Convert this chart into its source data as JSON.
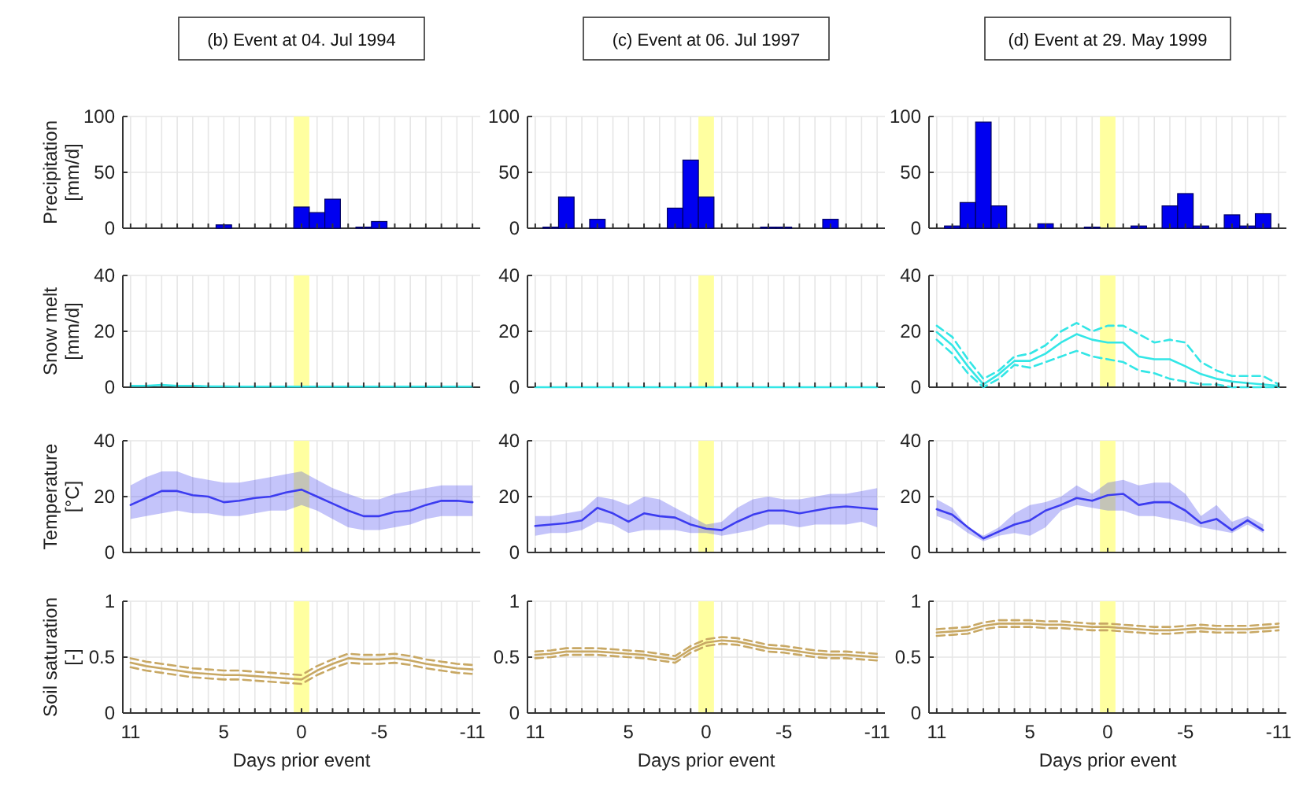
{
  "chart_data": [
    {
      "type": "bar",
      "title": "(b) Event at 04. Jul 1994",
      "ylabel": "Precipitation [mm/d]",
      "x": [
        5,
        0,
        -1,
        -2,
        -4,
        -5
      ],
      "values": [
        3,
        19,
        14,
        26,
        1,
        6
      ],
      "color": "#0000f0",
      "xlim": [
        11.5,
        -11.5
      ],
      "ylim": [
        0,
        100
      ],
      "yticks": [
        0,
        50,
        100
      ],
      "xticks": [
        11,
        {
          "value": 10,
          "label": null
        },
        {
          "value": 9,
          "label": null
        },
        {
          "value": 8,
          "label": null
        },
        {
          "value": 7,
          "label": null
        },
        {
          "value": 6,
          "label": null
        },
        5,
        {
          "value": 4,
          "label": null
        },
        {
          "value": 3,
          "label": null
        },
        {
          "value": 2,
          "label": null
        },
        {
          "value": 1,
          "label": null
        },
        0,
        {
          "value": -1,
          "label": null
        },
        {
          "value": -2,
          "label": null
        },
        {
          "value": -3,
          "label": null
        },
        {
          "value": -4,
          "label": null
        },
        -5,
        {
          "value": -6,
          "label": null
        },
        {
          "value": -7,
          "label": null
        },
        {
          "value": -8,
          "label": null
        },
        {
          "value": -9,
          "label": null
        },
        {
          "value": -10,
          "label": null
        },
        -11
      ],
      "grid": true,
      "tick_labels": "y",
      "bands": [
        {
          "axis": "x",
          "from": 0.5,
          "to": -0.5,
          "color": "#ffffa0"
        }
      ]
    },
    {
      "type": "bar",
      "title": "(c) Event at 06. Jul 1997",
      "x": [
        10,
        9,
        7,
        2,
        1,
        0,
        -4,
        -5,
        -8
      ],
      "values": [
        1,
        28,
        8,
        18,
        61,
        28,
        1,
        1,
        8
      ],
      "color": "#0000f0",
      "xlim": [
        11.5,
        -11.5
      ],
      "ylim": [
        0,
        100
      ],
      "yticks": [
        0,
        50,
        100
      ],
      "xticks": [
        11,
        {
          "value": 10,
          "label": null
        },
        {
          "value": 9,
          "label": null
        },
        {
          "value": 8,
          "label": null
        },
        {
          "value": 7,
          "label": null
        },
        {
          "value": 6,
          "label": null
        },
        5,
        {
          "value": 4,
          "label": null
        },
        {
          "value": 3,
          "label": null
        },
        {
          "value": 2,
          "label": null
        },
        {
          "value": 1,
          "label": null
        },
        0,
        {
          "value": -1,
          "label": null
        },
        {
          "value": -2,
          "label": null
        },
        {
          "value": -3,
          "label": null
        },
        {
          "value": -4,
          "label": null
        },
        -5,
        {
          "value": -6,
          "label": null
        },
        {
          "value": -7,
          "label": null
        },
        {
          "value": -8,
          "label": null
        },
        {
          "value": -9,
          "label": null
        },
        {
          "value": -10,
          "label": null
        },
        -11
      ],
      "grid": true,
      "tick_labels": "y",
      "bands": [
        {
          "axis": "x",
          "from": 0.5,
          "to": -0.5,
          "color": "#ffffa0"
        }
      ]
    },
    {
      "type": "bar",
      "title": "(d) Event at 29. May 1999",
      "x": [
        10,
        9,
        8,
        7,
        4,
        1,
        -2,
        -4,
        -5,
        -6,
        -8,
        -9,
        -10
      ],
      "values": [
        2,
        23,
        95,
        20,
        4,
        1,
        2,
        20,
        31,
        2,
        12,
        2,
        13
      ],
      "color": "#0000f0",
      "xlim": [
        11.5,
        -11.5
      ],
      "ylim": [
        0,
        100
      ],
      "yticks": [
        0,
        50,
        100
      ],
      "xticks": [
        11,
        {
          "value": 10,
          "label": null
        },
        {
          "value": 9,
          "label": null
        },
        {
          "value": 8,
          "label": null
        },
        {
          "value": 7,
          "label": null
        },
        {
          "value": 6,
          "label": null
        },
        5,
        {
          "value": 4,
          "label": null
        },
        {
          "value": 3,
          "label": null
        },
        {
          "value": 2,
          "label": null
        },
        {
          "value": 1,
          "label": null
        },
        0,
        {
          "value": -1,
          "label": null
        },
        {
          "value": -2,
          "label": null
        },
        {
          "value": -3,
          "label": null
        },
        {
          "value": -4,
          "label": null
        },
        -5,
        {
          "value": -6,
          "label": null
        },
        {
          "value": -7,
          "label": null
        },
        {
          "value": -8,
          "label": null
        },
        {
          "value": -9,
          "label": null
        },
        {
          "value": -10,
          "label": null
        },
        -11
      ],
      "grid": true,
      "tick_labels": "y",
      "bands": [
        {
          "axis": "x",
          "from": 0.5,
          "to": -0.5,
          "color": "#ffffa0"
        }
      ]
    },
    {
      "type": "line",
      "ylabel": "Snow melt [mm/d]",
      "x": [
        11,
        10,
        9,
        8,
        7,
        6,
        5,
        4,
        3,
        2,
        1,
        0,
        -1,
        -2,
        -3,
        -4,
        -5,
        -6,
        -7,
        -8,
        -9,
        -10,
        -11
      ],
      "series": [
        {
          "color": "#33e6e6",
          "values": [
            0.5,
            0.5,
            0.8,
            0.5,
            0.5,
            0.3,
            0.3,
            0.2,
            0.2,
            0.2,
            0.2,
            0.2,
            0.2,
            0.2,
            0.2,
            0.2,
            0.2,
            0.2,
            0.2,
            0.2,
            0.2,
            0.2,
            0.2
          ]
        }
      ],
      "xlim": [
        11.5,
        -11.5
      ],
      "ylim": [
        0,
        40
      ],
      "yticks": [
        0,
        20,
        40
      ],
      "xticks": [
        11,
        {
          "value": 10,
          "label": null
        },
        {
          "value": 9,
          "label": null
        },
        {
          "value": 8,
          "label": null
        },
        {
          "value": 7,
          "label": null
        },
        {
          "value": 6,
          "label": null
        },
        5,
        {
          "value": 4,
          "label": null
        },
        {
          "value": 3,
          "label": null
        },
        {
          "value": 2,
          "label": null
        },
        {
          "value": 1,
          "label": null
        },
        0,
        {
          "value": -1,
          "label": null
        },
        {
          "value": -2,
          "label": null
        },
        {
          "value": -3,
          "label": null
        },
        {
          "value": -4,
          "label": null
        },
        -5,
        {
          "value": -6,
          "label": null
        },
        {
          "value": -7,
          "label": null
        },
        {
          "value": -8,
          "label": null
        },
        {
          "value": -9,
          "label": null
        },
        {
          "value": -10,
          "label": null
        },
        -11
      ],
      "grid": true,
      "tick_labels": "y",
      "bands": [
        {
          "axis": "x",
          "from": 0.5,
          "to": -0.5,
          "color": "#ffffa0"
        }
      ]
    },
    {
      "type": "line",
      "x": [
        11,
        10,
        9,
        8,
        7,
        6,
        5,
        4,
        3,
        2,
        1,
        0,
        -1,
        -2,
        -3,
        -4,
        -5,
        -6,
        -7,
        -8,
        -9,
        -10,
        -11
      ],
      "series": [
        {
          "color": "#33e6e6",
          "values": [
            0,
            0,
            0,
            0,
            0,
            0,
            0,
            0,
            0,
            0,
            0,
            0,
            0,
            0,
            0,
            0,
            0,
            0,
            0,
            0,
            0,
            0,
            0
          ]
        }
      ],
      "xlim": [
        11.5,
        -11.5
      ],
      "ylim": [
        0,
        40
      ],
      "yticks": [
        0,
        20,
        40
      ],
      "xticks": [
        11,
        {
          "value": 10,
          "label": null
        },
        {
          "value": 9,
          "label": null
        },
        {
          "value": 8,
          "label": null
        },
        {
          "value": 7,
          "label": null
        },
        {
          "value": 6,
          "label": null
        },
        5,
        {
          "value": 4,
          "label": null
        },
        {
          "value": 3,
          "label": null
        },
        {
          "value": 2,
          "label": null
        },
        {
          "value": 1,
          "label": null
        },
        0,
        {
          "value": -1,
          "label": null
        },
        {
          "value": -2,
          "label": null
        },
        {
          "value": -3,
          "label": null
        },
        {
          "value": -4,
          "label": null
        },
        -5,
        {
          "value": -6,
          "label": null
        },
        {
          "value": -7,
          "label": null
        },
        {
          "value": -8,
          "label": null
        },
        {
          "value": -9,
          "label": null
        },
        {
          "value": -10,
          "label": null
        },
        -11
      ],
      "grid": true,
      "tick_labels": "y",
      "bands": [
        {
          "axis": "x",
          "from": 0.5,
          "to": -0.5,
          "color": "#ffffa0"
        }
      ]
    },
    {
      "type": "line",
      "x": [
        11,
        10,
        9,
        8,
        7,
        6,
        5,
        4,
        3,
        2,
        1,
        0,
        -1,
        -2,
        -3,
        -4,
        -5,
        -6,
        -7,
        -8,
        -9,
        -10,
        -11
      ],
      "series": [
        {
          "color": "#33e6e6",
          "line_style": "solid",
          "values": [
            19.7,
            15,
            7.5,
            1,
            4.7,
            9.4,
            9.4,
            12,
            16,
            19,
            17,
            16,
            16,
            11,
            10,
            10,
            7.5,
            4.7,
            3,
            2,
            1.5,
            1,
            0.5
          ]
        },
        {
          "color": "#33e6e6",
          "line_style": "dashed",
          "values": [
            22,
            18,
            10,
            3,
            6,
            11,
            12,
            15,
            20,
            23,
            20,
            22,
            22,
            19,
            16,
            17,
            16,
            9,
            6,
            4,
            4,
            4,
            1
          ]
        },
        {
          "color": "#33e6e6",
          "line_style": "dashed",
          "values": [
            17,
            12,
            5,
            0,
            3,
            8,
            7,
            9,
            11,
            13,
            11,
            10,
            9,
            6,
            5,
            3,
            2,
            1,
            1,
            0,
            0,
            0,
            0
          ]
        }
      ],
      "xlim": [
        11.5,
        -11.5
      ],
      "ylim": [
        0,
        40
      ],
      "yticks": [
        0,
        20,
        40
      ],
      "xticks": [
        11,
        {
          "value": 10,
          "label": null
        },
        {
          "value": 9,
          "label": null
        },
        {
          "value": 8,
          "label": null
        },
        {
          "value": 7,
          "label": null
        },
        {
          "value": 6,
          "label": null
        },
        5,
        {
          "value": 4,
          "label": null
        },
        {
          "value": 3,
          "label": null
        },
        {
          "value": 2,
          "label": null
        },
        {
          "value": 1,
          "label": null
        },
        0,
        {
          "value": -1,
          "label": null
        },
        {
          "value": -2,
          "label": null
        },
        {
          "value": -3,
          "label": null
        },
        {
          "value": -4,
          "label": null
        },
        -5,
        {
          "value": -6,
          "label": null
        },
        {
          "value": -7,
          "label": null
        },
        {
          "value": -8,
          "label": null
        },
        {
          "value": -9,
          "label": null
        },
        {
          "value": -10,
          "label": null
        },
        -11
      ],
      "grid": true,
      "tick_labels": "y",
      "bands": [
        {
          "axis": "x",
          "from": 0.5,
          "to": -0.5,
          "color": "#ffffa0"
        }
      ]
    },
    {
      "type": "line",
      "ylabel": "Temperature [°C]",
      "x": [
        11,
        10,
        9,
        8,
        7,
        6,
        5,
        4,
        3,
        2,
        1,
        0,
        -1,
        -2,
        -3,
        -4,
        -5,
        -6,
        -7,
        -8,
        -9,
        -10,
        -11
      ],
      "series": [
        {
          "color": "#3c3cf0",
          "values": [
            17,
            19.5,
            22,
            22,
            20.5,
            20,
            18,
            18.5,
            19.5,
            20,
            21.5,
            22.5,
            20,
            17.5,
            15,
            13,
            13,
            14.5,
            15,
            17,
            18.5,
            18.5,
            18
          ],
          "upper": [
            24,
            27,
            29,
            29,
            27,
            26,
            25,
            25,
            26,
            27,
            28,
            29,
            26,
            23,
            21,
            19,
            19,
            21,
            22,
            23,
            24,
            24,
            24
          ],
          "lower": [
            12,
            13,
            14,
            15,
            14,
            14,
            13,
            13,
            14,
            15,
            15,
            17,
            15,
            12,
            9,
            8,
            8,
            9,
            10,
            12,
            13,
            13,
            13
          ]
        }
      ],
      "xlim": [
        11.5,
        -11.5
      ],
      "ylim": [
        0,
        40
      ],
      "yticks": [
        0,
        20,
        40
      ],
      "xticks": [
        11,
        {
          "value": 10,
          "label": null
        },
        {
          "value": 9,
          "label": null
        },
        {
          "value": 8,
          "label": null
        },
        {
          "value": 7,
          "label": null
        },
        {
          "value": 6,
          "label": null
        },
        5,
        {
          "value": 4,
          "label": null
        },
        {
          "value": 3,
          "label": null
        },
        {
          "value": 2,
          "label": null
        },
        {
          "value": 1,
          "label": null
        },
        0,
        {
          "value": -1,
          "label": null
        },
        {
          "value": -2,
          "label": null
        },
        {
          "value": -3,
          "label": null
        },
        {
          "value": -4,
          "label": null
        },
        -5,
        {
          "value": -6,
          "label": null
        },
        {
          "value": -7,
          "label": null
        },
        {
          "value": -8,
          "label": null
        },
        {
          "value": -9,
          "label": null
        },
        {
          "value": -10,
          "label": null
        },
        -11
      ],
      "grid": true,
      "tick_labels": "y",
      "bands": [
        {
          "axis": "x",
          "from": 0.5,
          "to": -0.5,
          "color": "#ffffa0"
        }
      ]
    },
    {
      "type": "line",
      "x": [
        11,
        10,
        9,
        8,
        7,
        6,
        5,
        4,
        3,
        2,
        1,
        0,
        -1,
        -2,
        -3,
        -4,
        -5,
        -6,
        -7,
        -8,
        -9,
        -10,
        -11
      ],
      "series": [
        {
          "color": "#3c3cf0",
          "values": [
            9.5,
            10,
            10.5,
            11.5,
            16,
            14,
            11,
            14,
            13,
            12.5,
            10,
            8.5,
            8,
            11,
            13.5,
            15,
            15,
            14,
            15,
            16,
            16.5,
            16,
            15.5
          ],
          "upper": [
            13,
            13,
            14,
            15,
            20,
            19,
            17,
            20,
            19,
            16,
            13,
            10,
            11,
            16,
            19,
            20,
            19,
            19,
            20,
            21,
            21,
            22,
            23
          ],
          "lower": [
            6,
            7,
            7,
            8,
            11,
            10,
            7,
            8,
            8,
            8,
            7,
            7,
            6,
            7,
            8,
            10,
            10,
            9,
            10,
            10,
            10,
            11,
            9
          ]
        }
      ],
      "xlim": [
        11.5,
        -11.5
      ],
      "ylim": [
        0,
        40
      ],
      "yticks": [
        0,
        20,
        40
      ],
      "xticks": [
        11,
        {
          "value": 10,
          "label": null
        },
        {
          "value": 9,
          "label": null
        },
        {
          "value": 8,
          "label": null
        },
        {
          "value": 7,
          "label": null
        },
        {
          "value": 6,
          "label": null
        },
        5,
        {
          "value": 4,
          "label": null
        },
        {
          "value": 3,
          "label": null
        },
        {
          "value": 2,
          "label": null
        },
        {
          "value": 1,
          "label": null
        },
        0,
        {
          "value": -1,
          "label": null
        },
        {
          "value": -2,
          "label": null
        },
        {
          "value": -3,
          "label": null
        },
        {
          "value": -4,
          "label": null
        },
        -5,
        {
          "value": -6,
          "label": null
        },
        {
          "value": -7,
          "label": null
        },
        {
          "value": -8,
          "label": null
        },
        {
          "value": -9,
          "label": null
        },
        {
          "value": -10,
          "label": null
        },
        -11
      ],
      "grid": true,
      "tick_labels": "y",
      "bands": [
        {
          "axis": "x",
          "from": 0.5,
          "to": -0.5,
          "color": "#ffffa0"
        }
      ]
    },
    {
      "type": "line",
      "x": [
        11,
        10,
        9,
        8,
        7,
        6,
        5,
        4,
        3,
        2,
        1,
        0,
        -1,
        -2,
        -3,
        -4,
        -5,
        -6,
        -7,
        -8,
        -9,
        -10
      ],
      "series": [
        {
          "color": "#3c3cf0",
          "values": [
            15.5,
            13.5,
            9,
            5,
            7.5,
            10,
            11.5,
            15,
            17,
            19.5,
            18.5,
            20.5,
            21,
            17,
            18,
            18,
            15,
            10.5,
            12,
            8,
            11.5,
            8
          ],
          "upper": [
            19,
            16,
            9,
            6,
            9,
            14,
            17,
            18,
            20,
            24,
            21,
            25,
            26,
            24,
            25,
            25,
            21,
            13,
            17,
            11,
            13,
            10
          ],
          "lower": [
            13,
            11,
            7,
            4,
            6,
            7,
            6,
            9,
            15,
            17,
            16,
            15,
            15,
            13,
            13,
            12,
            11,
            9,
            8,
            7,
            10,
            7
          ]
        }
      ],
      "xlim": [
        11.5,
        -11.5
      ],
      "ylim": [
        0,
        40
      ],
      "yticks": [
        0,
        20,
        40
      ],
      "xticks": [
        11,
        {
          "value": 10,
          "label": null
        },
        {
          "value": 9,
          "label": null
        },
        {
          "value": 8,
          "label": null
        },
        {
          "value": 7,
          "label": null
        },
        {
          "value": 6,
          "label": null
        },
        5,
        {
          "value": 4,
          "label": null
        },
        {
          "value": 3,
          "label": null
        },
        {
          "value": 2,
          "label": null
        },
        {
          "value": 1,
          "label": null
        },
        0,
        {
          "value": -1,
          "label": null
        },
        {
          "value": -2,
          "label": null
        },
        {
          "value": -3,
          "label": null
        },
        {
          "value": -4,
          "label": null
        },
        -5,
        {
          "value": -6,
          "label": null
        },
        {
          "value": -7,
          "label": null
        },
        {
          "value": -8,
          "label": null
        },
        {
          "value": -9,
          "label": null
        },
        {
          "value": -10,
          "label": null
        },
        -11
      ],
      "grid": true,
      "tick_labels": "y",
      "bands": [
        {
          "axis": "x",
          "from": 0.5,
          "to": -0.5,
          "color": "#ffffa0"
        }
      ]
    },
    {
      "type": "line",
      "ylabel": "Soil saturation [-]",
      "xlabel": "Days prior event",
      "x": [
        11,
        10,
        9,
        8,
        7,
        6,
        5,
        4,
        3,
        2,
        1,
        0,
        -1,
        -2,
        -3,
        -4,
        -5,
        -6,
        -7,
        -8,
        -9,
        -10,
        -11
      ],
      "series": [
        {
          "color": "#c8a864",
          "line_style": "solid",
          "values": [
            0.45,
            0.42,
            0.4,
            0.38,
            0.36,
            0.35,
            0.34,
            0.34,
            0.33,
            0.32,
            0.31,
            0.3,
            0.38,
            0.44,
            0.49,
            0.48,
            0.48,
            0.49,
            0.47,
            0.44,
            0.42,
            0.4,
            0.39
          ]
        },
        {
          "color": "#c8a864",
          "line_style": "dashed",
          "values": [
            0.49,
            0.46,
            0.44,
            0.42,
            0.4,
            0.39,
            0.38,
            0.38,
            0.37,
            0.36,
            0.35,
            0.34,
            0.42,
            0.48,
            0.53,
            0.52,
            0.52,
            0.53,
            0.51,
            0.48,
            0.46,
            0.44,
            0.43
          ]
        },
        {
          "color": "#c8a864",
          "line_style": "dashed",
          "values": [
            0.41,
            0.38,
            0.36,
            0.34,
            0.32,
            0.31,
            0.3,
            0.3,
            0.29,
            0.28,
            0.27,
            0.26,
            0.34,
            0.4,
            0.45,
            0.44,
            0.44,
            0.45,
            0.43,
            0.4,
            0.38,
            0.36,
            0.35
          ]
        }
      ],
      "xlim": [
        11.5,
        -11.5
      ],
      "ylim": [
        0,
        1
      ],
      "yticks": [
        0,
        0.5,
        1
      ],
      "xticks": [
        11,
        {
          "value": 10,
          "label": null
        },
        {
          "value": 9,
          "label": null
        },
        {
          "value": 8,
          "label": null
        },
        {
          "value": 7,
          "label": null
        },
        {
          "value": 6,
          "label": null
        },
        5,
        {
          "value": 4,
          "label": null
        },
        {
          "value": 3,
          "label": null
        },
        {
          "value": 2,
          "label": null
        },
        {
          "value": 1,
          "label": null
        },
        0,
        {
          "value": -1,
          "label": null
        },
        {
          "value": -2,
          "label": null
        },
        {
          "value": -3,
          "label": null
        },
        {
          "value": -4,
          "label": null
        },
        -5,
        {
          "value": -6,
          "label": null
        },
        {
          "value": -7,
          "label": null
        },
        {
          "value": -8,
          "label": null
        },
        {
          "value": -9,
          "label": null
        },
        {
          "value": -10,
          "label": null
        },
        -11
      ],
      "grid": true,
      "bands": [
        {
          "axis": "x",
          "from": 0.5,
          "to": -0.5,
          "color": "#ffffa0"
        }
      ]
    },
    {
      "type": "line",
      "xlabel": "Days prior event",
      "x": [
        11,
        10,
        9,
        8,
        7,
        6,
        5,
        4,
        3,
        2,
        1,
        0,
        -1,
        -2,
        -3,
        -4,
        -5,
        -6,
        -7,
        -8,
        -9,
        -10,
        -11
      ],
      "series": [
        {
          "color": "#c8a864",
          "line_style": "solid",
          "values": [
            0.52,
            0.53,
            0.55,
            0.55,
            0.55,
            0.54,
            0.53,
            0.52,
            0.5,
            0.48,
            0.57,
            0.63,
            0.65,
            0.64,
            0.61,
            0.58,
            0.57,
            0.55,
            0.53,
            0.52,
            0.52,
            0.51,
            0.5
          ]
        },
        {
          "color": "#c8a864",
          "line_style": "dashed",
          "values": [
            0.55,
            0.56,
            0.58,
            0.58,
            0.58,
            0.57,
            0.56,
            0.55,
            0.53,
            0.51,
            0.6,
            0.66,
            0.68,
            0.67,
            0.64,
            0.61,
            0.6,
            0.58,
            0.56,
            0.55,
            0.55,
            0.54,
            0.53
          ]
        },
        {
          "color": "#c8a864",
          "line_style": "dashed",
          "values": [
            0.49,
            0.5,
            0.52,
            0.52,
            0.52,
            0.51,
            0.5,
            0.49,
            0.47,
            0.45,
            0.54,
            0.6,
            0.62,
            0.61,
            0.58,
            0.55,
            0.54,
            0.52,
            0.5,
            0.49,
            0.49,
            0.48,
            0.47
          ]
        }
      ],
      "xlim": [
        11.5,
        -11.5
      ],
      "ylim": [
        0,
        1
      ],
      "yticks": [
        0,
        0.5,
        1
      ],
      "xticks": [
        11,
        {
          "value": 10,
          "label": null
        },
        {
          "value": 9,
          "label": null
        },
        {
          "value": 8,
          "label": null
        },
        {
          "value": 7,
          "label": null
        },
        {
          "value": 6,
          "label": null
        },
        5,
        {
          "value": 4,
          "label": null
        },
        {
          "value": 3,
          "label": null
        },
        {
          "value": 2,
          "label": null
        },
        {
          "value": 1,
          "label": null
        },
        0,
        {
          "value": -1,
          "label": null
        },
        {
          "value": -2,
          "label": null
        },
        {
          "value": -3,
          "label": null
        },
        {
          "value": -4,
          "label": null
        },
        -5,
        {
          "value": -6,
          "label": null
        },
        {
          "value": -7,
          "label": null
        },
        {
          "value": -8,
          "label": null
        },
        {
          "value": -9,
          "label": null
        },
        {
          "value": -10,
          "label": null
        },
        -11
      ],
      "grid": true,
      "bands": [
        {
          "axis": "x",
          "from": 0.5,
          "to": -0.5,
          "color": "#ffffa0"
        }
      ]
    },
    {
      "type": "line",
      "xlabel": "Days prior event",
      "x": [
        11,
        10,
        9,
        8,
        7,
        6,
        5,
        4,
        3,
        2,
        1,
        0,
        -1,
        -2,
        -3,
        -4,
        -5,
        -6,
        -7,
        -8,
        -9,
        -10,
        -11
      ],
      "series": [
        {
          "color": "#c8a864",
          "line_style": "solid",
          "values": [
            0.72,
            0.73,
            0.74,
            0.78,
            0.8,
            0.8,
            0.8,
            0.79,
            0.79,
            0.78,
            0.77,
            0.77,
            0.76,
            0.75,
            0.74,
            0.74,
            0.75,
            0.76,
            0.75,
            0.75,
            0.75,
            0.76,
            0.77
          ]
        },
        {
          "color": "#c8a864",
          "line_style": "dashed",
          "values": [
            0.75,
            0.76,
            0.77,
            0.81,
            0.83,
            0.83,
            0.83,
            0.82,
            0.82,
            0.81,
            0.8,
            0.8,
            0.79,
            0.78,
            0.77,
            0.77,
            0.78,
            0.79,
            0.78,
            0.78,
            0.78,
            0.79,
            0.8
          ]
        },
        {
          "color": "#c8a864",
          "line_style": "dashed",
          "values": [
            0.69,
            0.7,
            0.71,
            0.75,
            0.77,
            0.77,
            0.77,
            0.76,
            0.76,
            0.75,
            0.74,
            0.74,
            0.73,
            0.72,
            0.71,
            0.71,
            0.72,
            0.73,
            0.72,
            0.72,
            0.72,
            0.73,
            0.74
          ]
        }
      ],
      "xlim": [
        11.5,
        -11.5
      ],
      "ylim": [
        0,
        1
      ],
      "yticks": [
        0,
        0.5,
        1
      ],
      "xticks": [
        11,
        {
          "value": 10,
          "label": null
        },
        {
          "value": 9,
          "label": null
        },
        {
          "value": 8,
          "label": null
        },
        {
          "value": 7,
          "label": null
        },
        {
          "value": 6,
          "label": null
        },
        5,
        {
          "value": 4,
          "label": null
        },
        {
          "value": 3,
          "label": null
        },
        {
          "value": 2,
          "label": null
        },
        {
          "value": 1,
          "label": null
        },
        0,
        {
          "value": -1,
          "label": null
        },
        {
          "value": -2,
          "label": null
        },
        {
          "value": -3,
          "label": null
        },
        {
          "value": -4,
          "label": null
        },
        -5,
        {
          "value": -6,
          "label": null
        },
        {
          "value": -7,
          "label": null
        },
        {
          "value": -8,
          "label": null
        },
        {
          "value": -9,
          "label": null
        },
        {
          "value": -10,
          "label": null
        },
        -11
      ],
      "grid": true,
      "bands": [
        {
          "axis": "x",
          "from": 0.5,
          "to": -0.5,
          "color": "#ffffa0"
        }
      ]
    }
  ]
}
